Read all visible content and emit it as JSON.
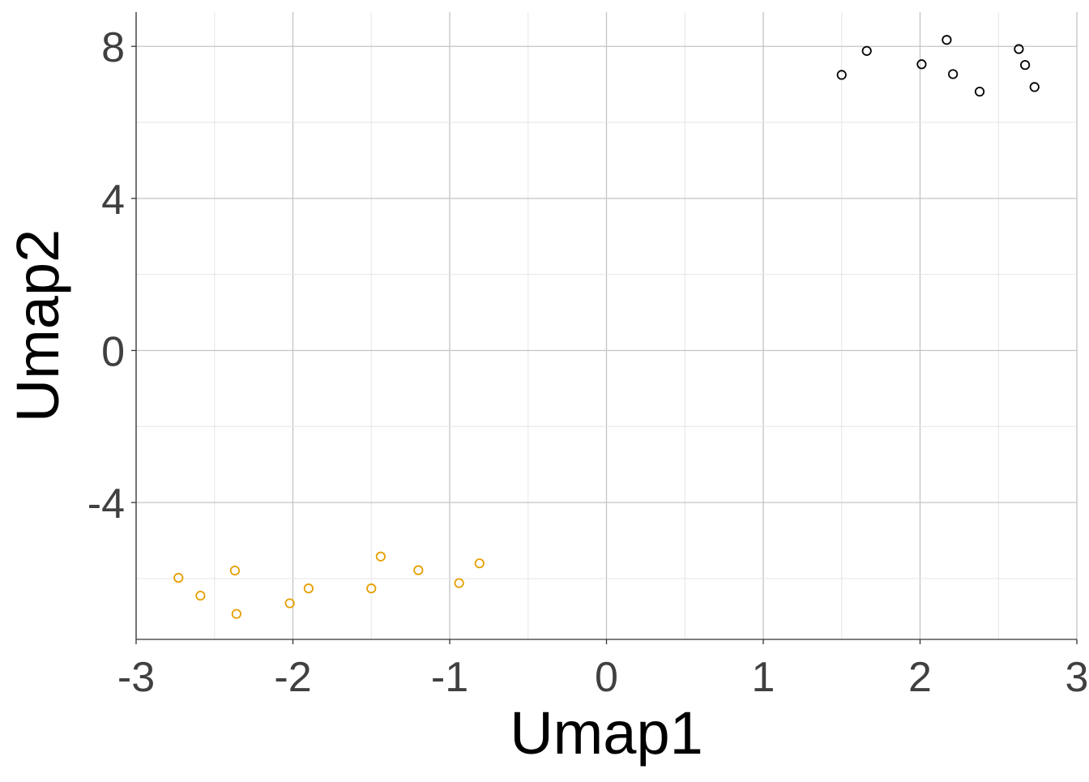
{
  "chart_data": {
    "type": "scatter",
    "title": "",
    "xlabel": "Umap1",
    "ylabel": "Umap2",
    "xlim": [
      -3,
      3
    ],
    "ylim": [
      -7.6,
      8.9
    ],
    "x_ticks": [
      -3,
      -2,
      -1,
      0,
      1,
      2,
      3
    ],
    "x_tick_labels": [
      "-3",
      "-2",
      "-1",
      "0",
      "1",
      "2",
      "3"
    ],
    "y_ticks": [
      -4,
      0,
      4,
      8
    ],
    "y_tick_labels": [
      "-4",
      "0",
      "4",
      "8"
    ],
    "grid": true,
    "legend": "none",
    "series": [
      {
        "color": "#000000",
        "points": [
          [
            1.5,
            7.25
          ],
          [
            1.66,
            7.88
          ],
          [
            2.01,
            7.53
          ],
          [
            2.17,
            8.17
          ],
          [
            2.21,
            7.27
          ],
          [
            2.38,
            6.81
          ],
          [
            2.63,
            7.93
          ],
          [
            2.67,
            7.51
          ],
          [
            2.73,
            6.93
          ]
        ]
      },
      {
        "color": "#E69F00",
        "points": [
          [
            -2.73,
            -5.98
          ],
          [
            -2.59,
            -6.45
          ],
          [
            -2.37,
            -5.79
          ],
          [
            -2.36,
            -6.93
          ],
          [
            -2.02,
            -6.65
          ],
          [
            -1.9,
            -6.26
          ],
          [
            -1.5,
            -6.26
          ],
          [
            -1.44,
            -5.42
          ],
          [
            -1.2,
            -5.78
          ],
          [
            -0.94,
            -6.12
          ],
          [
            -0.81,
            -5.6
          ]
        ]
      }
    ]
  }
}
